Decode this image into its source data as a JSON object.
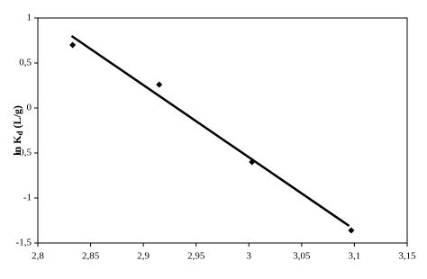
{
  "chart_data": {
    "type": "scatter",
    "y_label": "ln K",
    "y_label_sub": "d",
    "y_label_unit": "(L/g)",
    "x": [
      2.833,
      2.915,
      3.003,
      3.097
    ],
    "values": [
      0.7,
      0.26,
      -0.6,
      -1.36
    ],
    "color": "#000000",
    "fit": {
      "x": [
        2.832,
        3.095
      ],
      "values": [
        0.8,
        -1.31
      ],
      "color": "#000000"
    },
    "xlim": [
      2.8,
      3.15
    ],
    "xticks": [
      {
        "value": 2.8,
        "label": "2,8"
      },
      {
        "value": 2.85,
        "label": "2,85"
      },
      {
        "value": 2.9,
        "label": "2,9"
      },
      {
        "value": 2.95,
        "label": "2,95"
      },
      3,
      {
        "value": 3.05,
        "label": "3,05"
      },
      {
        "value": 3.1,
        "label": "3,1"
      },
      {
        "value": 3.15,
        "label": "3,15"
      }
    ],
    "ylim": [
      -1.5,
      1
    ],
    "yticks": [
      1,
      {
        "value": 0.5,
        "label": "0,5"
      },
      0,
      {
        "value": -0.5,
        "label": "-0,5"
      },
      -1,
      {
        "value": -1.5,
        "label": "-1,5"
      }
    ],
    "grid": false
  }
}
